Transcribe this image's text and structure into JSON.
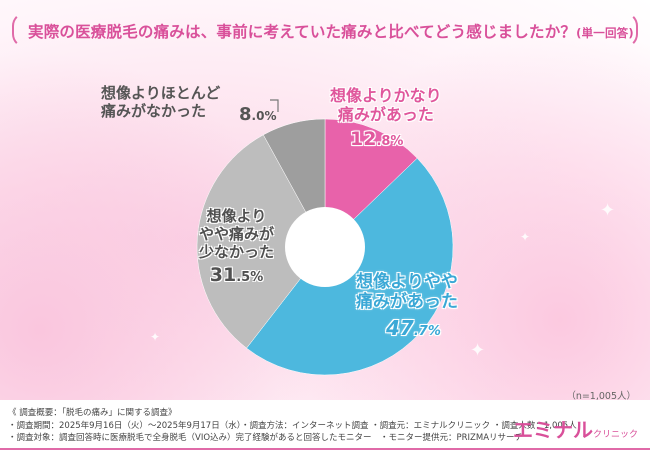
{
  "title": {
    "main": "実際の医療脱毛の痛みは、事前に考えていた痛みと比べてどう感じましたか？",
    "suffix": "(単一回答)"
  },
  "chart_data": {
    "type": "pie",
    "title": "実際の医療脱毛の痛みは、事前に考えていた痛みと比べてどう感じましたか？(単一回答)",
    "donut": true,
    "start_angle": "12 o'clock, clockwise",
    "categories": [
      "想像よりかなり痛みがあった",
      "想像よりやや痛みがあった",
      "想像よりやや痛みが少なかった",
      "想像よりほとんど痛みがなかった"
    ],
    "values": [
      12.8,
      47.7,
      31.5,
      8.0
    ],
    "unit": "%",
    "colors": [
      "#e862aa",
      "#4db8de",
      "#bdbdbd",
      "#9e9e9e"
    ],
    "sample": "n=1,005人"
  },
  "labels": {
    "s1": {
      "line1": "想像よりかなり",
      "line2": "痛みがあった",
      "pct_int": "12",
      "pct_dec": ".8%"
    },
    "s2": {
      "line1": "想像よりやや",
      "line2": "痛みがあった",
      "pct_int": "47",
      "pct_dec": ".7%"
    },
    "s3": {
      "line1": "想像より",
      "line2": "やや痛みが",
      "line3": "少なかった",
      "pct_int": "31",
      "pct_dec": ".5%"
    },
    "s4": {
      "line1": "想像よりほとんど",
      "line2": "痛みがなかった",
      "pct_int": "8",
      "pct_dec": ".0%"
    }
  },
  "n_note": "（n=1,005人）",
  "footer": {
    "line1": "《 調査概要：「脱毛の痛み」に関する調査》",
    "line2": "・調査期間：2025年9月16日（火）～2025年9月17日（水）・調査方法：インターネット調査 ・調査元：エミナルクリニック ・調査人数：1,005人",
    "line3": "・調査対象：調査回答時に医療脱毛で全身脱毛（VIO込み）完了経験があると回答したモニター　・モニター提供元：PRIZMAリサーチ",
    "logo_main": "エミナル",
    "logo_sub": "クリニック"
  }
}
